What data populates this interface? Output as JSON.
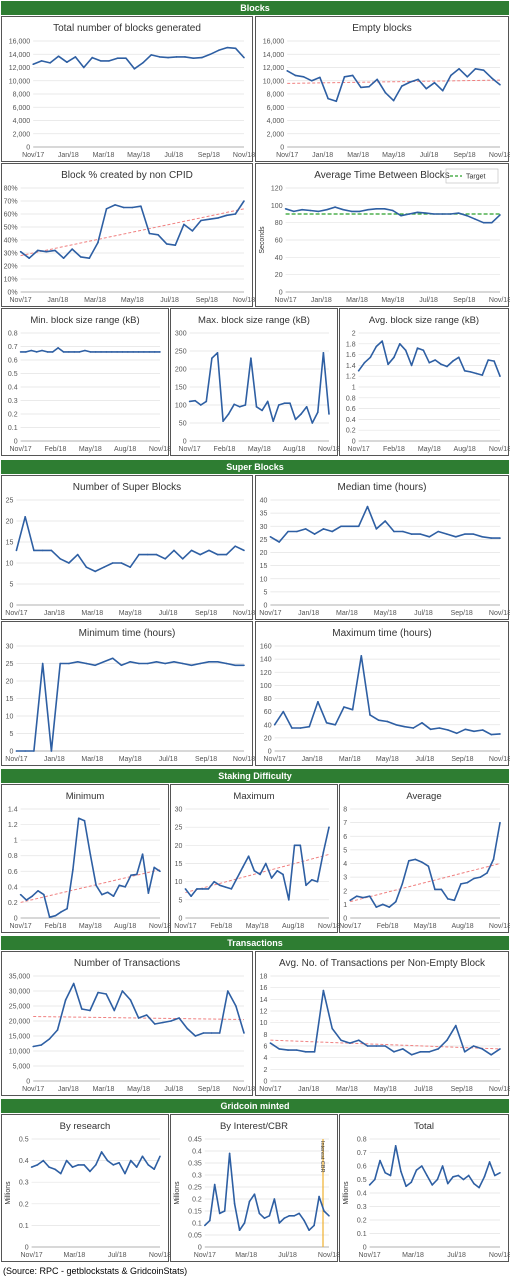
{
  "sections": [
    {
      "title": "Blocks"
    },
    {
      "title": "Super Blocks"
    },
    {
      "title": "Staking Difficulty"
    },
    {
      "title": "Transactions"
    },
    {
      "title": "Gridcoin minted"
    }
  ],
  "source": "(Source: RPC - getblockstats & GridcoinStats)",
  "colors": {
    "line": "#2e5fa3",
    "trend": "#f08080",
    "target": "#2ca02c",
    "section": "#2e7d32",
    "marker": "#f0b030"
  },
  "chart_data": [
    {
      "id": "total_blocks",
      "type": "line",
      "title": "Total number of blocks generated",
      "ylim": [
        0,
        16000
      ],
      "yticks": [
        0,
        2000,
        4000,
        6000,
        8000,
        10000,
        12000,
        14000,
        16000
      ],
      "xticks": [
        "Nov/17",
        "Jan/18",
        "Mar/18",
        "May/18",
        "Jul/18",
        "Sep/18",
        "Nov/18"
      ],
      "values": [
        12500,
        13000,
        12700,
        13700,
        12800,
        13600,
        12000,
        13500,
        13000,
        13000,
        13400,
        13400,
        11800,
        12700,
        13900,
        13600,
        13500,
        13600,
        13600,
        13400,
        13500,
        14000,
        14600,
        15000,
        14900,
        13500
      ],
      "trend": false
    },
    {
      "id": "empty_blocks",
      "type": "line",
      "title": "Empty blocks",
      "ylim": [
        0,
        16000
      ],
      "yticks": [
        0,
        2000,
        4000,
        6000,
        8000,
        10000,
        12000,
        14000,
        16000
      ],
      "xticks": [
        "Nov/17",
        "Jan/18",
        "Mar/18",
        "May/18",
        "Jul/18",
        "Sep/18",
        "Nov/18"
      ],
      "values": [
        11500,
        10800,
        10600,
        10000,
        10500,
        7300,
        6900,
        10600,
        10800,
        9000,
        9100,
        10200,
        8200,
        7000,
        9200,
        9800,
        10200,
        8800,
        9700,
        8500,
        10800,
        11800,
        10600,
        11800,
        11600,
        10400,
        9400
      ],
      "trend": [
        9600,
        10100
      ]
    },
    {
      "id": "block_pct",
      "type": "line",
      "title": "Block % created by non CPID",
      "ylim": [
        0,
        0.8
      ],
      "yticks": [
        0,
        0.1,
        0.2,
        0.3,
        0.4,
        0.5,
        0.6,
        0.7,
        0.8
      ],
      "yfmt": "pct",
      "xticks": [
        "Nov/17",
        "Jan/18",
        "Mar/18",
        "May/18",
        "Jul/18",
        "Sep/18",
        "Nov/18"
      ],
      "values": [
        0.31,
        0.26,
        0.32,
        0.31,
        0.32,
        0.26,
        0.33,
        0.27,
        0.26,
        0.38,
        0.64,
        0.67,
        0.65,
        0.65,
        0.66,
        0.45,
        0.44,
        0.37,
        0.36,
        0.52,
        0.47,
        0.55,
        0.56,
        0.57,
        0.59,
        0.6,
        0.7
      ],
      "trend": [
        0.28,
        0.64
      ]
    },
    {
      "id": "avg_time",
      "type": "line",
      "title": "Average Time Between Blocks",
      "ylabel": "Seconds",
      "legend": "Target",
      "ylim": [
        0,
        120
      ],
      "yticks": [
        0,
        20,
        40,
        60,
        80,
        100,
        120
      ],
      "xticks": [
        "Nov/17",
        "Jan/18",
        "Mar/18",
        "May/18",
        "Jul/18",
        "Sep/18",
        "Nov/18"
      ],
      "values": [
        96,
        93,
        95,
        94,
        93,
        95,
        98,
        95,
        93,
        93,
        95,
        96,
        96,
        94,
        88,
        90,
        92,
        91,
        90,
        90,
        90,
        91,
        88,
        84,
        80,
        80,
        89
      ],
      "target": 90
    },
    {
      "id": "min_size",
      "type": "line",
      "title": "Min. block size range (kB)",
      "ylim": [
        0,
        0.8
      ],
      "yticks": [
        0,
        0.1,
        0.2,
        0.3,
        0.4,
        0.5,
        0.6,
        0.7,
        0.8
      ],
      "xticks": [
        "Nov/17",
        "Feb/18",
        "May/18",
        "Aug/18",
        "Nov/18"
      ],
      "values": [
        0.66,
        0.66,
        0.67,
        0.66,
        0.67,
        0.66,
        0.66,
        0.69,
        0.66,
        0.66,
        0.66,
        0.66,
        0.67,
        0.66,
        0.66,
        0.66,
        0.66,
        0.66,
        0.66,
        0.66,
        0.66,
        0.66,
        0.66,
        0.66,
        0.66,
        0.66,
        0.66
      ],
      "trend": false
    },
    {
      "id": "max_size",
      "type": "line",
      "title": "Max. block size range (kB)",
      "ylim": [
        0,
        300
      ],
      "yticks": [
        0,
        50,
        100,
        150,
        200,
        250,
        300
      ],
      "xticks": [
        "Nov/17",
        "Feb/18",
        "May/18",
        "Aug/18",
        "Nov/18"
      ],
      "values": [
        110,
        112,
        100,
        110,
        230,
        245,
        55,
        75,
        102,
        95,
        100,
        230,
        95,
        85,
        110,
        55,
        100,
        105,
        105,
        60,
        75,
        95,
        50,
        80,
        245,
        75
      ],
      "trend": false
    },
    {
      "id": "avg_size",
      "type": "line",
      "title": "Avg. block size range (kB)",
      "ylim": [
        0,
        2
      ],
      "yticks": [
        0,
        0.2,
        0.4,
        0.6,
        0.8,
        1,
        1.2,
        1.4,
        1.6,
        1.8,
        2
      ],
      "xticks": [
        "Nov/17",
        "Feb/18",
        "May/18",
        "Aug/18",
        "Nov/18"
      ],
      "values": [
        1.3,
        1.45,
        1.55,
        1.75,
        1.85,
        1.42,
        1.55,
        1.8,
        1.68,
        1.4,
        1.72,
        1.68,
        1.45,
        1.5,
        1.42,
        1.38,
        1.48,
        1.55,
        1.3,
        1.28,
        1.25,
        1.22,
        1.5,
        1.48,
        1.2
      ],
      "trend": false
    },
    {
      "id": "num_super",
      "type": "line",
      "title": "Number of Super Blocks",
      "ylim": [
        0,
        25
      ],
      "yticks": [
        0,
        5,
        10,
        15,
        20,
        25
      ],
      "xticks": [
        "Nov/17",
        "Jan/18",
        "Mar/18",
        "May/18",
        "Jul/18",
        "Sep/18",
        "Nov/18"
      ],
      "values": [
        13,
        21,
        13,
        13,
        13,
        11,
        10,
        12,
        9,
        8,
        9,
        10,
        10,
        9,
        12,
        12,
        12,
        11,
        13,
        11,
        13,
        12,
        13,
        12,
        12,
        14,
        13
      ],
      "trend": false
    },
    {
      "id": "median_time",
      "type": "line",
      "title": "Median time (hours)",
      "ylim": [
        0,
        40
      ],
      "yticks": [
        0,
        5,
        10,
        15,
        20,
        25,
        30,
        35,
        40
      ],
      "xticks": [
        "Nov/17",
        "Jan/18",
        "Mar/18",
        "May/18",
        "Jul/18",
        "Sep/18",
        "Nov/18"
      ],
      "values": [
        26,
        24,
        28,
        28,
        29,
        27,
        29,
        28,
        30,
        30,
        30,
        37.5,
        29,
        32,
        28,
        28,
        27,
        27,
        26,
        28,
        27,
        26,
        27,
        27,
        26,
        25.5,
        25.5
      ],
      "trend": false
    },
    {
      "id": "min_time",
      "type": "line",
      "title": "Minimum time (hours)",
      "ylim": [
        0,
        30
      ],
      "yticks": [
        0,
        5,
        10,
        15,
        20,
        25,
        30
      ],
      "xticks": [
        "Nov/17",
        "Jan/18",
        "Mar/18",
        "May/18",
        "Jul/18",
        "Sep/18",
        "Nov/18"
      ],
      "values": [
        0,
        0,
        0,
        25,
        0,
        25,
        25,
        25.5,
        25,
        24.5,
        25.5,
        26.5,
        24.5,
        25.5,
        25,
        25,
        25.5,
        25,
        25.5,
        25,
        24.5,
        25,
        25.5,
        25.5,
        25,
        24.5,
        24.5
      ],
      "trend": false
    },
    {
      "id": "max_time",
      "type": "line",
      "title": "Maximum time (hours)",
      "ylim": [
        0,
        160
      ],
      "yticks": [
        0,
        20,
        40,
        60,
        80,
        100,
        120,
        140,
        160
      ],
      "xticks": [
        "Nov/17",
        "Jan/18",
        "Mar/18",
        "May/18",
        "Jul/18",
        "Sep/18",
        "Nov/18"
      ],
      "values": [
        40,
        60,
        35,
        35,
        37,
        75,
        43,
        40,
        67,
        63,
        145,
        55,
        47,
        45,
        40,
        37,
        35,
        43,
        33,
        35,
        32,
        27,
        33,
        30,
        32,
        25,
        26
      ],
      "trend": false
    },
    {
      "id": "stake_min",
      "type": "line",
      "title": "Minimum",
      "ylim": [
        0,
        1.4
      ],
      "yticks": [
        0,
        0.2,
        0.4,
        0.6,
        0.8,
        1,
        1.2,
        1.4
      ],
      "xticks": [
        "Nov/17",
        "Feb/18",
        "May/18",
        "Aug/18",
        "Nov/18"
      ],
      "values": [
        0.3,
        0.23,
        0.28,
        0.35,
        0.3,
        0.01,
        0.03,
        0.08,
        0.12,
        0.62,
        1.28,
        1.25,
        0.82,
        0.42,
        0.3,
        0.33,
        0.28,
        0.42,
        0.4,
        0.55,
        0.56,
        0.82,
        0.32,
        0.65,
        0.6
      ],
      "trend": [
        0.2,
        0.62
      ]
    },
    {
      "id": "stake_max",
      "type": "line",
      "title": "Maximum",
      "ylim": [
        0,
        30
      ],
      "yticks": [
        0,
        5,
        10,
        15,
        20,
        25,
        30
      ],
      "xticks": [
        "Nov/17",
        "Feb/18",
        "May/18",
        "Aug/18",
        "Nov/18"
      ],
      "values": [
        8,
        6,
        8,
        8,
        8,
        10,
        9,
        8.5,
        8,
        11,
        14,
        17,
        13,
        12,
        15,
        11,
        13,
        12,
        5,
        20,
        20,
        9,
        10.5,
        10,
        18,
        25
      ],
      "trend": [
        7,
        17.5
      ]
    },
    {
      "id": "stake_avg",
      "type": "line",
      "title": "Average",
      "ylim": [
        0,
        8
      ],
      "yticks": [
        0,
        1,
        2,
        3,
        4,
        5,
        6,
        7,
        8
      ],
      "xticks": [
        "Nov/17",
        "Feb/18",
        "May/18",
        "Aug/18",
        "Nov/18"
      ],
      "values": [
        1.3,
        1.6,
        1.5,
        1.6,
        0.8,
        1.0,
        0.8,
        1.2,
        2.5,
        4.2,
        4.3,
        4.1,
        3.8,
        2.1,
        2.1,
        1.4,
        1.3,
        2.5,
        2.6,
        2.9,
        3.0,
        3.3,
        4.3,
        7.0
      ],
      "trend": [
        1.2,
        4.0
      ]
    },
    {
      "id": "num_tx",
      "type": "line",
      "title": "Number of Transactions",
      "ylim": [
        0,
        35000
      ],
      "yticks": [
        0,
        5000,
        10000,
        15000,
        20000,
        25000,
        30000,
        35000
      ],
      "xticks": [
        "Nov/17",
        "Jan/18",
        "Mar/18",
        "May/18",
        "Jul/18",
        "Sep/18",
        "Nov/18"
      ],
      "values": [
        11500,
        12000,
        14000,
        17000,
        27000,
        32500,
        24000,
        23500,
        29500,
        29000,
        23500,
        30000,
        27000,
        21000,
        22000,
        19000,
        19500,
        20000,
        21000,
        17500,
        15000,
        16000,
        16000,
        16000,
        30000,
        25000,
        16000
      ],
      "trend": [
        21500,
        20500
      ]
    },
    {
      "id": "avg_tx",
      "type": "line",
      "title": "Avg. No. of Transactions per Non-Empty Block",
      "ylim": [
        0,
        18
      ],
      "yticks": [
        0,
        2,
        4,
        6,
        8,
        10,
        12,
        14,
        16,
        18
      ],
      "xticks": [
        "Nov/17",
        "Jan/18",
        "Mar/18",
        "May/18",
        "Jul/18",
        "Sep/18",
        "Nov/18"
      ],
      "values": [
        6.5,
        5.5,
        5.3,
        5.3,
        5,
        5,
        15.5,
        9,
        7,
        6.5,
        7,
        6,
        6,
        6,
        5,
        5.5,
        4.5,
        5,
        5,
        5.5,
        7,
        9.5,
        5,
        6,
        5.5,
        4.5,
        5.5
      ],
      "trend": [
        7,
        5.5
      ]
    },
    {
      "id": "by_research",
      "type": "line",
      "title": "By research",
      "ylabel": "Millions",
      "ylim": [
        0,
        0.5
      ],
      "yticks": [
        0,
        0.1,
        0.2,
        0.3,
        0.4,
        0.5
      ],
      "xticks": [
        "Nov/17",
        "Mar/18",
        "Jul/18",
        "Nov/18"
      ],
      "values": [
        0.37,
        0.38,
        0.4,
        0.37,
        0.36,
        0.34,
        0.4,
        0.37,
        0.38,
        0.38,
        0.35,
        0.38,
        0.44,
        0.4,
        0.38,
        0.39,
        0.34,
        0.4,
        0.37,
        0.42,
        0.38,
        0.36,
        0.42
      ],
      "trend": false
    },
    {
      "id": "by_interest",
      "type": "line",
      "title": "By Interest/CBR",
      "ylabel": "Millions",
      "marker_label": "Interest CBR",
      "ylim": [
        0,
        0.45
      ],
      "yticks": [
        0,
        0.05,
        0.1,
        0.15,
        0.2,
        0.25,
        0.3,
        0.35,
        0.4,
        0.45
      ],
      "xticks": [
        "Nov/17",
        "Mar/18",
        "Jul/18",
        "Nov/18"
      ],
      "values": [
        0.09,
        0.11,
        0.26,
        0.14,
        0.15,
        0.39,
        0.18,
        0.07,
        0.1,
        0.19,
        0.22,
        0.14,
        0.12,
        0.13,
        0.2,
        0.1,
        0.12,
        0.13,
        0.13,
        0.14,
        0.11,
        0.07,
        0.09,
        0.21,
        0.15,
        0.13
      ],
      "trend": false
    },
    {
      "id": "total",
      "type": "line",
      "title": "Total",
      "ylabel": "Millions",
      "ylim": [
        0,
        0.8
      ],
      "yticks": [
        0,
        0.1,
        0.2,
        0.3,
        0.4,
        0.5,
        0.6,
        0.7,
        0.8
      ],
      "xticks": [
        "Nov/17",
        "Mar/18",
        "Jul/18",
        "Nov/18"
      ],
      "values": [
        0.46,
        0.5,
        0.64,
        0.55,
        0.53,
        0.75,
        0.56,
        0.45,
        0.48,
        0.57,
        0.6,
        0.53,
        0.46,
        0.5,
        0.6,
        0.47,
        0.52,
        0.53,
        0.5,
        0.53,
        0.47,
        0.44,
        0.52,
        0.63,
        0.53,
        0.55
      ],
      "trend": false
    }
  ]
}
